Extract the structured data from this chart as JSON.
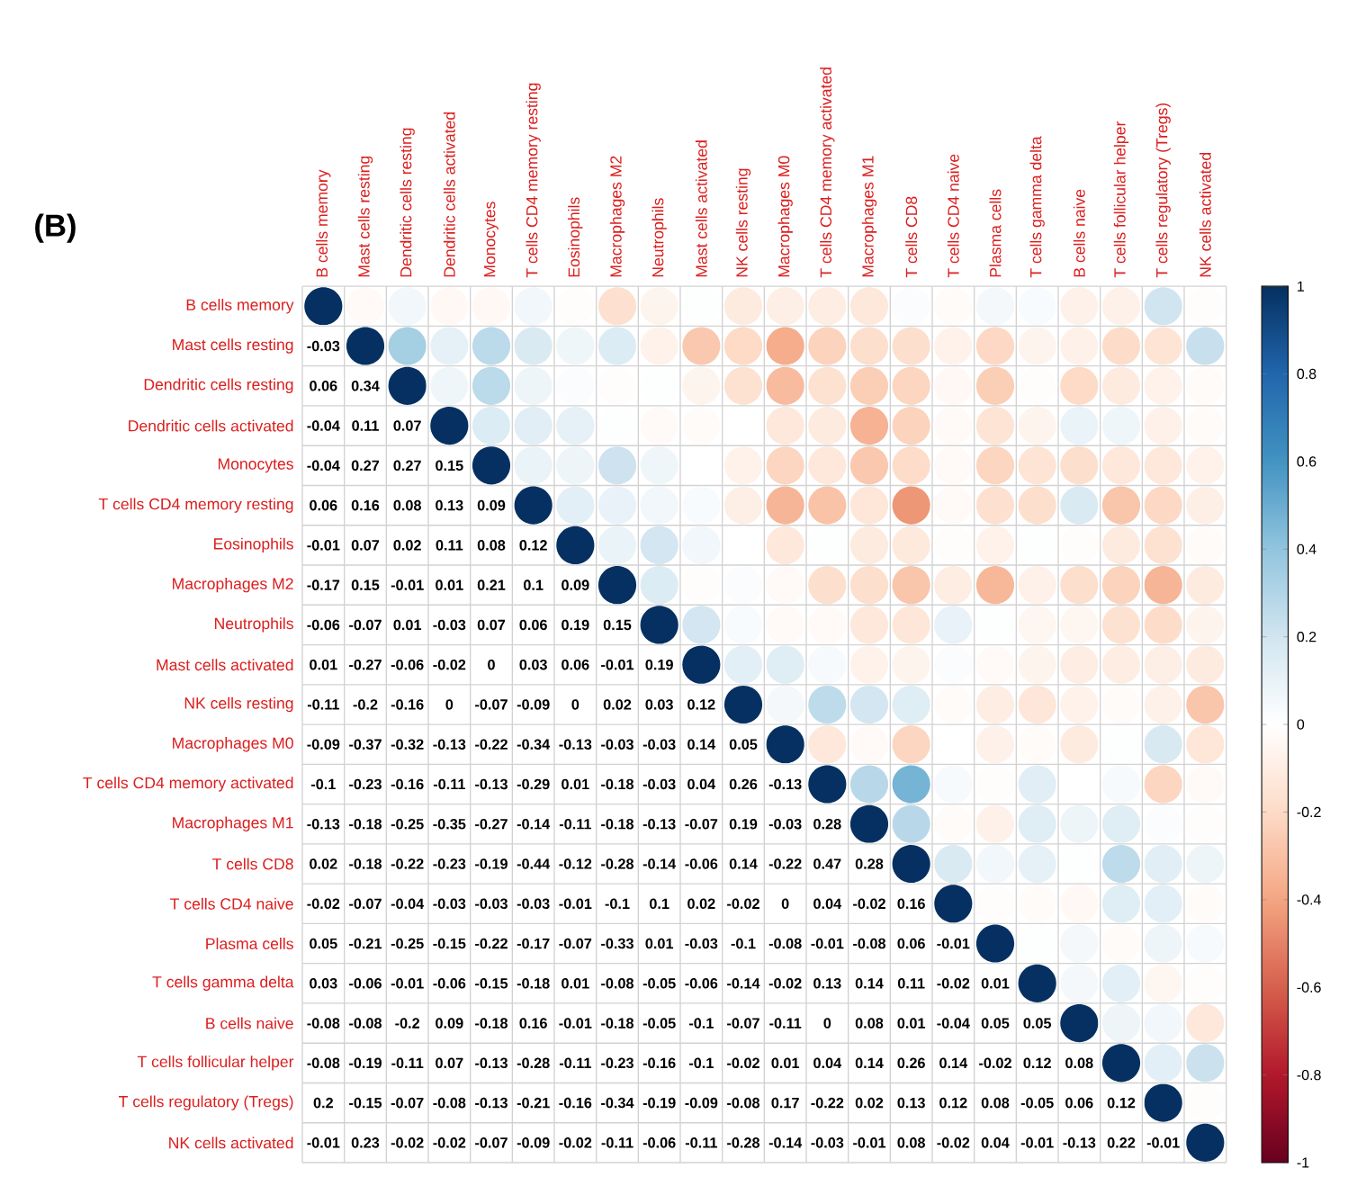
{
  "chart_data": {
    "type": "heatmap",
    "title": "(B)",
    "categories": [
      "B cells memory",
      "Mast cells resting",
      "Dendritic cells resting",
      "Dendritic cells activated",
      "Monocytes",
      "T cells CD4 memory resting",
      "Eosinophils",
      "Macrophages M2",
      "Neutrophils",
      "Mast cells activated",
      "NK cells resting",
      "Macrophages M0",
      "T cells CD4 memory activated",
      "Macrophages M1",
      "T cells CD8",
      "T cells CD4 naive",
      "Plasma cells",
      "T cells gamma delta",
      "B cells naive",
      "T cells follicular helper",
      "T cells regulatory (Tregs)",
      "NK cells activated"
    ],
    "y_categories": [
      "B cells memory",
      "Mast cells resting",
      "Dendritic cells resting",
      "Dendritic cells activated",
      "Monocytes",
      "T cells CD4 memory resting",
      "Eosinophils",
      "Macrophages M2",
      "Neutrophils",
      "Mast cells activated",
      "NK cells resting",
      "Macrophages M0",
      "T cells CD4 memory activated",
      "Macrophages M1",
      "T cells CD8",
      "T cells CD4 naive",
      "Plasma cells",
      "T cells gamma delta",
      "B cells naive",
      "T cells follicular helper",
      "T cells regulatory (Tregs)",
      "NK cells activated"
    ],
    "cells": [
      [
        1,
        -0.03,
        0.06,
        -0.04,
        -0.04,
        0.06,
        -0.01,
        -0.17,
        -0.06,
        0.01,
        -0.11,
        -0.09,
        -0.1,
        -0.13,
        0.02,
        -0.02,
        0.05,
        0.03,
        -0.08,
        -0.08,
        0.2,
        -0.01
      ],
      [
        null,
        1,
        0.34,
        0.11,
        0.27,
        0.16,
        0.07,
        0.15,
        -0.07,
        -0.27,
        -0.2,
        -0.37,
        -0.23,
        -0.18,
        -0.18,
        -0.07,
        -0.21,
        -0.06,
        -0.08,
        -0.19,
        -0.15,
        0.23
      ],
      [
        null,
        null,
        1,
        0.07,
        0.27,
        0.08,
        0.02,
        -0.01,
        0.01,
        -0.06,
        -0.16,
        -0.32,
        -0.16,
        -0.25,
        -0.22,
        -0.04,
        -0.25,
        -0.01,
        -0.2,
        -0.11,
        -0.07,
        -0.02
      ],
      [
        null,
        null,
        null,
        1,
        0.15,
        0.13,
        0.11,
        0.01,
        -0.03,
        -0.02,
        0,
        -0.13,
        -0.11,
        -0.35,
        -0.23,
        -0.03,
        -0.15,
        -0.06,
        0.09,
        0.07,
        -0.08,
        -0.02
      ],
      [
        null,
        null,
        null,
        null,
        1,
        0.09,
        0.08,
        0.21,
        0.07,
        0,
        -0.07,
        -0.22,
        -0.13,
        -0.27,
        -0.19,
        -0.03,
        -0.22,
        -0.15,
        -0.18,
        -0.13,
        -0.13,
        -0.07
      ],
      [
        null,
        null,
        null,
        null,
        null,
        1,
        0.12,
        0.1,
        0.06,
        0.03,
        -0.09,
        -0.34,
        -0.29,
        -0.14,
        -0.44,
        -0.03,
        -0.17,
        -0.18,
        0.16,
        -0.28,
        -0.21,
        -0.09
      ],
      [
        null,
        null,
        null,
        null,
        null,
        null,
        1,
        0.09,
        0.19,
        0.06,
        0,
        -0.13,
        0.01,
        -0.11,
        -0.12,
        -0.01,
        -0.07,
        0.01,
        -0.01,
        -0.11,
        -0.16,
        -0.02
      ],
      [
        null,
        null,
        null,
        null,
        null,
        null,
        null,
        1,
        0.15,
        -0.01,
        0.02,
        -0.03,
        -0.18,
        -0.18,
        -0.28,
        -0.1,
        -0.33,
        -0.08,
        -0.18,
        -0.23,
        -0.34,
        -0.11
      ],
      [
        null,
        null,
        null,
        null,
        null,
        null,
        null,
        null,
        1,
        0.19,
        0.03,
        -0.03,
        -0.03,
        -0.13,
        -0.14,
        0.1,
        0.01,
        -0.05,
        -0.05,
        -0.16,
        -0.19,
        -0.06
      ],
      [
        null,
        null,
        null,
        null,
        null,
        null,
        null,
        null,
        null,
        1,
        0.12,
        0.14,
        0.04,
        -0.07,
        -0.06,
        0.02,
        -0.03,
        -0.06,
        -0.1,
        -0.1,
        -0.09,
        -0.11
      ],
      [
        null,
        null,
        null,
        null,
        null,
        null,
        null,
        null,
        null,
        null,
        1,
        0.05,
        0.26,
        0.19,
        0.14,
        -0.02,
        -0.1,
        -0.14,
        -0.07,
        -0.02,
        -0.08,
        -0.28
      ],
      [
        null,
        null,
        null,
        null,
        null,
        null,
        null,
        null,
        null,
        null,
        null,
        1,
        -0.13,
        -0.03,
        -0.22,
        0,
        -0.08,
        -0.02,
        -0.11,
        0.01,
        0.17,
        -0.14
      ],
      [
        null,
        null,
        null,
        null,
        null,
        null,
        null,
        null,
        null,
        null,
        null,
        null,
        1,
        0.28,
        0.47,
        0.04,
        -0.01,
        0.13,
        0,
        0.04,
        -0.22,
        -0.03
      ],
      [
        null,
        null,
        null,
        null,
        null,
        null,
        null,
        null,
        null,
        null,
        null,
        null,
        null,
        1,
        0.28,
        -0.02,
        -0.08,
        0.14,
        0.08,
        0.14,
        0.02,
        -0.01
      ],
      [
        null,
        null,
        null,
        null,
        null,
        null,
        null,
        null,
        null,
        null,
        null,
        null,
        null,
        null,
        1,
        0.16,
        0.06,
        0.11,
        0.01,
        0.26,
        0.13,
        0.08
      ],
      [
        null,
        null,
        null,
        null,
        null,
        null,
        null,
        null,
        null,
        null,
        null,
        null,
        null,
        null,
        null,
        1,
        -0.01,
        -0.02,
        -0.04,
        0.14,
        0.12,
        -0.02
      ],
      [
        null,
        null,
        null,
        null,
        null,
        null,
        null,
        null,
        null,
        null,
        null,
        null,
        null,
        null,
        null,
        null,
        1,
        0.01,
        0.05,
        -0.02,
        0.08,
        0.04
      ],
      [
        null,
        null,
        null,
        null,
        null,
        null,
        null,
        null,
        null,
        null,
        null,
        null,
        null,
        null,
        null,
        null,
        null,
        1,
        0.05,
        0.12,
        -0.05,
        -0.01
      ],
      [
        null,
        null,
        null,
        null,
        null,
        null,
        null,
        null,
        null,
        null,
        null,
        null,
        null,
        null,
        null,
        null,
        null,
        null,
        1,
        0.08,
        0.06,
        -0.13
      ],
      [
        null,
        null,
        null,
        null,
        null,
        null,
        null,
        null,
        null,
        null,
        null,
        null,
        null,
        null,
        null,
        null,
        null,
        null,
        null,
        1,
        0.12,
        0.22
      ],
      [
        null,
        null,
        null,
        null,
        null,
        null,
        null,
        null,
        null,
        null,
        null,
        null,
        null,
        null,
        null,
        null,
        null,
        null,
        null,
        null,
        1,
        -0.01
      ],
      [
        null,
        null,
        null,
        null,
        null,
        null,
        null,
        null,
        null,
        null,
        null,
        null,
        null,
        null,
        null,
        null,
        null,
        null,
        null,
        null,
        null,
        1
      ]
    ],
    "cell_labels": [
      [
        null,
        null,
        null,
        null,
        null,
        null,
        null,
        null,
        null,
        null,
        null,
        null,
        null,
        null,
        null,
        null,
        null,
        null,
        null,
        null,
        null,
        null
      ],
      [
        "-0.03",
        null,
        null,
        null,
        null,
        null,
        null,
        null,
        null,
        null,
        null,
        null,
        null,
        null,
        null,
        null,
        null,
        null,
        null,
        null,
        null,
        null
      ],
      [
        "0.06",
        "0.34",
        null,
        null,
        null,
        null,
        null,
        null,
        null,
        null,
        null,
        null,
        null,
        null,
        null,
        null,
        null,
        null,
        null,
        null,
        null,
        null
      ],
      [
        "-0.04",
        "0.11",
        "0.07",
        null,
        null,
        null,
        null,
        null,
        null,
        null,
        null,
        null,
        null,
        null,
        null,
        null,
        null,
        null,
        null,
        null,
        null,
        null
      ],
      [
        "-0.04",
        "0.27",
        "0.27",
        "0.15",
        null,
        null,
        null,
        null,
        null,
        null,
        null,
        null,
        null,
        null,
        null,
        null,
        null,
        null,
        null,
        null,
        null,
        null
      ],
      [
        "0.06",
        "0.16",
        "0.08",
        "0.13",
        "0.09",
        null,
        null,
        null,
        null,
        null,
        null,
        null,
        null,
        null,
        null,
        null,
        null,
        null,
        null,
        null,
        null,
        null
      ],
      [
        "-0.01",
        "0.07",
        "0.02",
        "0.11",
        "0.08",
        "0.12",
        null,
        null,
        null,
        null,
        null,
        null,
        null,
        null,
        null,
        null,
        null,
        null,
        null,
        null,
        null,
        null
      ],
      [
        "-0.17",
        "0.15",
        "-0.01",
        "0.01",
        "0.21",
        "0.1",
        "0.09",
        null,
        null,
        null,
        null,
        null,
        null,
        null,
        null,
        null,
        null,
        null,
        null,
        null,
        null,
        null
      ],
      [
        "-0.06",
        "-0.07",
        "0.01",
        "-0.03",
        "0.07",
        "0.06",
        "0.19",
        "0.15",
        null,
        null,
        null,
        null,
        null,
        null,
        null,
        null,
        null,
        null,
        null,
        null,
        null,
        null
      ],
      [
        "0.01",
        "-0.27",
        "-0.06",
        "-0.02",
        "0",
        "0.03",
        "0.06",
        "-0.01",
        "0.19",
        null,
        null,
        null,
        null,
        null,
        null,
        null,
        null,
        null,
        null,
        null,
        null,
        null
      ],
      [
        "-0.11",
        "-0.2",
        "-0.16",
        "0",
        "-0.07",
        "-0.09",
        "0",
        "0.02",
        "0.03",
        "0.12",
        null,
        null,
        null,
        null,
        null,
        null,
        null,
        null,
        null,
        null,
        null,
        null
      ],
      [
        "-0.09",
        "-0.37",
        "-0.32",
        "-0.13",
        "-0.22",
        "-0.34",
        "-0.13",
        "-0.03",
        "-0.03",
        "0.14",
        "0.05",
        null,
        null,
        null,
        null,
        null,
        null,
        null,
        null,
        null,
        null,
        null
      ],
      [
        "-0.1",
        "-0.23",
        "-0.16",
        "-0.11",
        "-0.13",
        "-0.29",
        "0.01",
        "-0.18",
        "-0.03",
        "0.04",
        "0.26",
        "-0.13",
        null,
        null,
        null,
        null,
        null,
        null,
        null,
        null,
        null,
        null
      ],
      [
        "-0.13",
        "-0.18",
        "-0.25",
        "-0.35",
        "-0.27",
        "-0.14",
        "-0.11",
        "-0.18",
        "-0.13",
        "-0.07",
        "0.19",
        "-0.03",
        "0.28",
        null,
        null,
        null,
        null,
        null,
        null,
        null,
        null,
        null
      ],
      [
        "0.02",
        "-0.18",
        "-0.22",
        "-0.23",
        "-0.19",
        "-0.44",
        "-0.12",
        "-0.28",
        "-0.14",
        "-0.06",
        "0.14",
        "-0.22",
        "0.47",
        "0.28",
        null,
        null,
        null,
        null,
        null,
        null,
        null,
        null
      ],
      [
        "-0.02",
        "-0.07",
        "-0.04",
        "-0.03",
        "-0.03",
        "-0.03",
        "-0.01",
        "-0.1",
        "0.1",
        "0.02",
        "-0.02",
        "0",
        "0.04",
        "-0.02",
        "0.16",
        null,
        null,
        null,
        null,
        null,
        null,
        null
      ],
      [
        "0.05",
        "-0.21",
        "-0.25",
        "-0.15",
        "-0.22",
        "-0.17",
        "-0.07",
        "-0.33",
        "0.01",
        "-0.03",
        "-0.1",
        "-0.08",
        "-0.01",
        "-0.08",
        "0.06",
        "-0.01",
        null,
        null,
        null,
        null,
        null,
        null
      ],
      [
        "0.03",
        "-0.06",
        "-0.01",
        "-0.06",
        "-0.15",
        "-0.18",
        "0.01",
        "-0.08",
        "-0.05",
        "-0.06",
        "-0.14",
        "-0.02",
        "0.13",
        "0.14",
        "0.11",
        "-0.02",
        "0.01",
        null,
        null,
        null,
        null,
        null
      ],
      [
        "-0.08",
        "-0.08",
        "-0.2",
        "0.09",
        "-0.18",
        "0.16",
        "-0.01",
        "-0.18",
        "-0.05",
        "-0.1",
        "-0.07",
        "-0.11",
        "0",
        "0.08",
        "0.01",
        "-0.04",
        "0.05",
        "0.05",
        null,
        null,
        null,
        null
      ],
      [
        "-0.08",
        "-0.19",
        "-0.11",
        "0.07",
        "-0.13",
        "-0.28",
        "-0.11",
        "-0.23",
        "-0.16",
        "-0.1",
        "-0.02",
        "0.01",
        "0.04",
        "0.14",
        "0.26",
        "0.14",
        "-0.02",
        "0.12",
        "0.08",
        null,
        null,
        null
      ],
      [
        "0.2",
        "-0.15",
        "-0.07",
        "-0.08",
        "-0.13",
        "-0.21",
        "-0.16",
        "-0.34",
        "-0.19",
        "-0.09",
        "-0.08",
        "0.17",
        "-0.22",
        "0.02",
        "0.13",
        "0.12",
        "0.08",
        "-0.05",
        "0.06",
        "0.12",
        null,
        null
      ],
      [
        "-0.01",
        "0.23",
        "-0.02",
        "-0.02",
        "-0.07",
        "-0.09",
        "-0.02",
        "-0.11",
        "-0.06",
        "-0.11",
        "-0.28",
        "-0.14",
        "-0.03",
        "-0.01",
        "0.08",
        "-0.02",
        "0.04",
        "-0.01",
        "-0.13",
        "0.22",
        "-0.01",
        null
      ]
    ],
    "clim": [
      -1,
      1
    ],
    "cticks": [
      -1,
      -0.8,
      -0.6,
      -0.4,
      -0.2,
      0,
      0.2,
      0.4,
      0.6,
      0.8,
      1
    ]
  }
}
